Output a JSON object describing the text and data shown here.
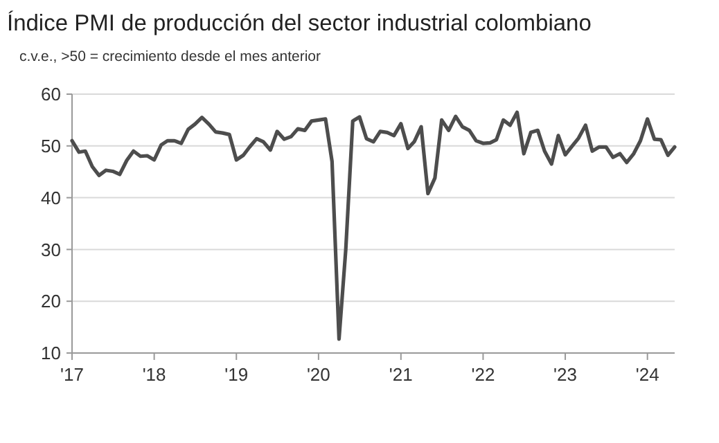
{
  "chart_data": {
    "type": "line",
    "title": "Índice PMI de producción del sector industrial colombiano",
    "subtitle": "c.v.e., >50 = crecimiento desde el mes anterior",
    "x": [
      "2017-01",
      "2017-02",
      "2017-03",
      "2017-04",
      "2017-05",
      "2017-06",
      "2017-07",
      "2017-08",
      "2017-09",
      "2017-10",
      "2017-11",
      "2017-12",
      "2018-01",
      "2018-02",
      "2018-03",
      "2018-04",
      "2018-05",
      "2018-06",
      "2018-07",
      "2018-08",
      "2018-09",
      "2018-10",
      "2018-11",
      "2018-12",
      "2019-01",
      "2019-02",
      "2019-03",
      "2019-04",
      "2019-05",
      "2019-06",
      "2019-07",
      "2019-08",
      "2019-09",
      "2019-10",
      "2019-11",
      "2019-12",
      "2020-01",
      "2020-02",
      "2020-03",
      "2020-04",
      "2020-05",
      "2020-06",
      "2020-07",
      "2020-08",
      "2020-09",
      "2020-10",
      "2020-11",
      "2020-12",
      "2021-01",
      "2021-02",
      "2021-03",
      "2021-04",
      "2021-05",
      "2021-06",
      "2021-07",
      "2021-08",
      "2021-09",
      "2021-10",
      "2021-11",
      "2021-12",
      "2022-01",
      "2022-02",
      "2022-03",
      "2022-04",
      "2022-05",
      "2022-06",
      "2022-07",
      "2022-08",
      "2022-09",
      "2022-10",
      "2022-11",
      "2022-12",
      "2023-01",
      "2023-02",
      "2023-03",
      "2023-04",
      "2023-05",
      "2023-06",
      "2023-07",
      "2023-08",
      "2023-09",
      "2023-10",
      "2023-11",
      "2023-12",
      "2024-01",
      "2024-02",
      "2024-03",
      "2024-04",
      "2024-05"
    ],
    "series": [
      {
        "color": "#4d4d4d",
        "values": [
          51,
          48.8,
          49,
          46,
          44.3,
          45.3,
          45.1,
          44.5,
          47.2,
          49,
          48,
          48.1,
          47.3,
          50.2,
          51,
          51,
          50.5,
          53.2,
          54.2,
          55.5,
          54.2,
          52.7,
          52.5,
          52.2,
          47.3,
          48.2,
          49.8,
          51.4,
          50.8,
          49.2,
          52.8,
          51.3,
          51.8,
          53.3,
          53,
          54.8,
          55,
          55.2,
          47,
          12.7,
          30,
          54.8,
          55.6,
          51.4,
          50.8,
          52.8,
          52.6,
          52,
          54.3,
          49.5,
          50.8,
          53.7,
          40.8,
          43.8,
          55,
          53,
          55.7,
          53.7,
          53,
          51,
          50.5,
          50.6,
          51.2,
          55,
          54,
          56.5,
          48.5,
          52.6,
          53,
          49,
          46.5,
          52,
          48.3,
          50,
          51.5,
          54,
          49,
          49.8,
          49.8,
          47.8,
          48.5,
          46.8,
          48.5,
          51,
          55.2,
          51.3,
          51.2,
          48.2,
          49.8
        ]
      }
    ],
    "xlim": [
      "2017-01",
      "2024-05"
    ],
    "xticks": [
      {
        "value": "2017-01",
        "label": "'17"
      },
      {
        "value": "2018-01",
        "label": "'18"
      },
      {
        "value": "2019-01",
        "label": "'19"
      },
      {
        "value": "2020-01",
        "label": "'20"
      },
      {
        "value": "2021-01",
        "label": "'21"
      },
      {
        "value": "2022-01",
        "label": "'22"
      },
      {
        "value": "2023-01",
        "label": "'23"
      },
      {
        "value": "2024-01",
        "label": "'24"
      }
    ],
    "ylim": [
      10,
      60
    ],
    "yticks": [
      10,
      20,
      30,
      40,
      50,
      60
    ],
    "grid": "y"
  }
}
